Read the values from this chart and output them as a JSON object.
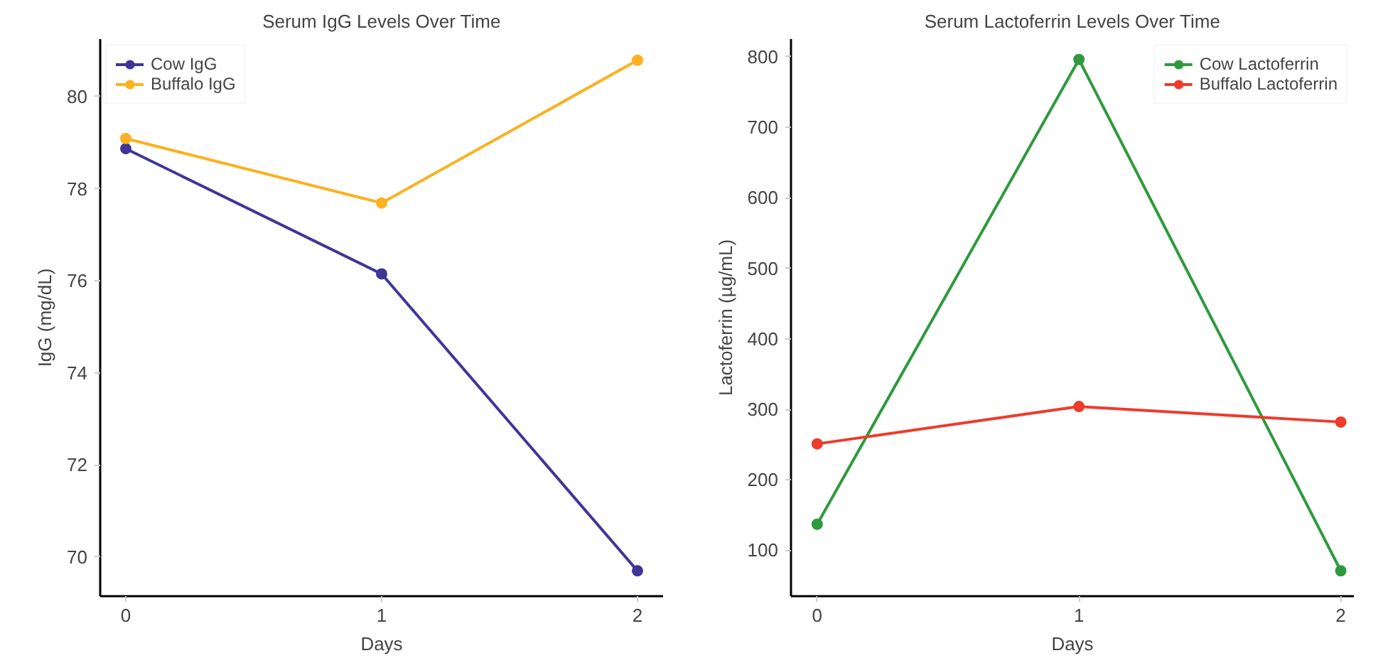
{
  "chart_data": [
    {
      "type": "line",
      "title": "Serum IgG Levels Over Time",
      "xlabel": "Days",
      "ylabel": "IgG (mg/dL)",
      "x": [
        0,
        1,
        2
      ],
      "xlim": [
        -0.1,
        2.1
      ],
      "xticks": [
        0,
        1,
        2
      ],
      "ylim": [
        69.15,
        81.25
      ],
      "yticks": [
        70,
        72,
        74,
        76,
        78,
        80
      ],
      "marker": "circle",
      "line_style": "solid",
      "grid": false,
      "legend": "top left",
      "series": [
        {
          "name": "Cow IgG",
          "color": "#3f3598",
          "values": [
            78.87,
            76.15,
            69.7
          ]
        },
        {
          "name": "Buffalo IgG",
          "color": "#fbb120",
          "values": [
            79.09,
            77.69,
            80.79
          ]
        }
      ]
    },
    {
      "type": "line",
      "title": "Serum Lactoferrin Levels Over Time",
      "xlabel": "Days",
      "ylabel": "Lactoferrin (µg/mL)",
      "x": [
        0,
        1,
        2
      ],
      "xlim": [
        -0.1,
        2.05
      ],
      "xticks": [
        0,
        1,
        2
      ],
      "ylim": [
        35,
        825
      ],
      "yticks": [
        100,
        200,
        300,
        400,
        500,
        600,
        700,
        800
      ],
      "marker": "circle",
      "line_style": "solid",
      "grid": false,
      "legend": "top right",
      "series": [
        {
          "name": "Cow Lactoferrin",
          "color": "#2e9a3e",
          "values": [
            137,
            796,
            71
          ]
        },
        {
          "name": "Buffalo Lactoferrin",
          "color": "#ee3b2b",
          "values": [
            251,
            304,
            282
          ]
        }
      ]
    }
  ]
}
